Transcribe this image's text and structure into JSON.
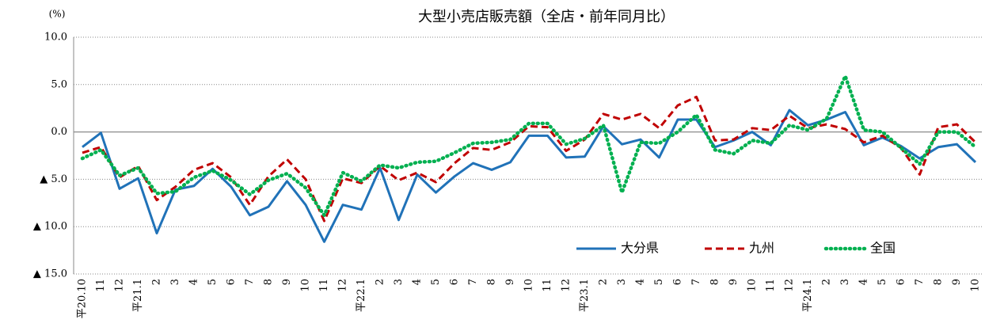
{
  "chart_data": {
    "type": "line",
    "title": "大型小売店販売額（全店・前年同月比）",
    "y_unit": "(%)",
    "categories": [
      "平20.10",
      "11",
      "12",
      "平21.1",
      "2",
      "3",
      "4",
      "5",
      "6",
      "7",
      "8",
      "9",
      "10",
      "11",
      "12",
      "平22.1",
      "2",
      "3",
      "4",
      "5",
      "6",
      "7",
      "8",
      "9",
      "10",
      "11",
      "12",
      "平23.1",
      "2",
      "3",
      "4",
      "5",
      "6",
      "7",
      "8",
      "9",
      "10",
      "11",
      "12",
      "平24.1",
      "2",
      "3",
      "4",
      "5",
      "6",
      "7",
      "8",
      "9",
      "10"
    ],
    "series": [
      {
        "name": "大分県",
        "color": "#2072b8",
        "dash": "solid",
        "values": [
          -1.6,
          -0.1,
          -6.0,
          -4.9,
          -10.7,
          -6.1,
          -5.7,
          -3.9,
          -5.8,
          -8.8,
          -7.9,
          -5.2,
          -7.7,
          -11.6,
          -7.7,
          -8.2,
          -3.8,
          -9.3,
          -4.5,
          -6.4,
          -4.7,
          -3.3,
          -4.0,
          -3.2,
          -0.4,
          -0.4,
          -2.7,
          -2.6,
          0.6,
          -1.3,
          -0.8,
          -2.7,
          1.3,
          1.3,
          -1.6,
          -0.9,
          0.0,
          -1.4,
          2.3,
          0.7,
          1.3,
          2.1,
          -1.4,
          -0.6,
          -1.5,
          -2.8,
          -1.6,
          -1.3,
          -3.2
        ]
      },
      {
        "name": "九州",
        "color": "#c00000",
        "dash": "dashed",
        "values": [
          -2.2,
          -1.6,
          -4.8,
          -3.6,
          -7.2,
          -5.8,
          -4.0,
          -3.3,
          -4.8,
          -7.7,
          -4.7,
          -2.9,
          -5.0,
          -9.4,
          -4.9,
          -5.4,
          -3.6,
          -5.1,
          -4.3,
          -5.3,
          -3.3,
          -1.7,
          -1.9,
          -1.1,
          0.6,
          0.5,
          -2.0,
          -0.8,
          1.9,
          1.3,
          1.9,
          0.4,
          2.8,
          3.7,
          -0.9,
          -0.8,
          0.4,
          0.2,
          1.7,
          0.4,
          0.8,
          0.3,
          -1.1,
          -0.4,
          -1.7,
          -4.5,
          0.5,
          0.8,
          -1.1
        ]
      },
      {
        "name": "全国",
        "color": "#00b050",
        "dash": "dotted",
        "values": [
          -2.8,
          -1.9,
          -4.6,
          -3.8,
          -6.5,
          -6.3,
          -4.8,
          -4.1,
          -5.1,
          -6.6,
          -5.1,
          -4.4,
          -5.9,
          -8.8,
          -4.3,
          -5.2,
          -3.5,
          -3.8,
          -3.2,
          -3.1,
          -2.2,
          -1.2,
          -1.1,
          -0.8,
          0.9,
          0.9,
          -1.3,
          -0.7,
          0.7,
          -6.4,
          -1.1,
          -1.2,
          0.0,
          1.8,
          -1.9,
          -2.3,
          -0.9,
          -1.2,
          0.7,
          0.2,
          1.4,
          5.9,
          0.2,
          0.0,
          -1.7,
          -3.4,
          0.0,
          0.0,
          -1.6
        ]
      }
    ],
    "ylim": [
      -15,
      10
    ],
    "yticks": [
      {
        "value": 10,
        "label": "10.0"
      },
      {
        "value": 5,
        "label": "5.0"
      },
      {
        "value": 0,
        "label": "0.0"
      },
      {
        "value": -5,
        "label": "▲ 5.0"
      },
      {
        "value": -10,
        "label": "▲ 10.0"
      },
      {
        "value": -15,
        "label": "▲ 15.0"
      }
    ],
    "grid": true,
    "legend": "lower right"
  }
}
